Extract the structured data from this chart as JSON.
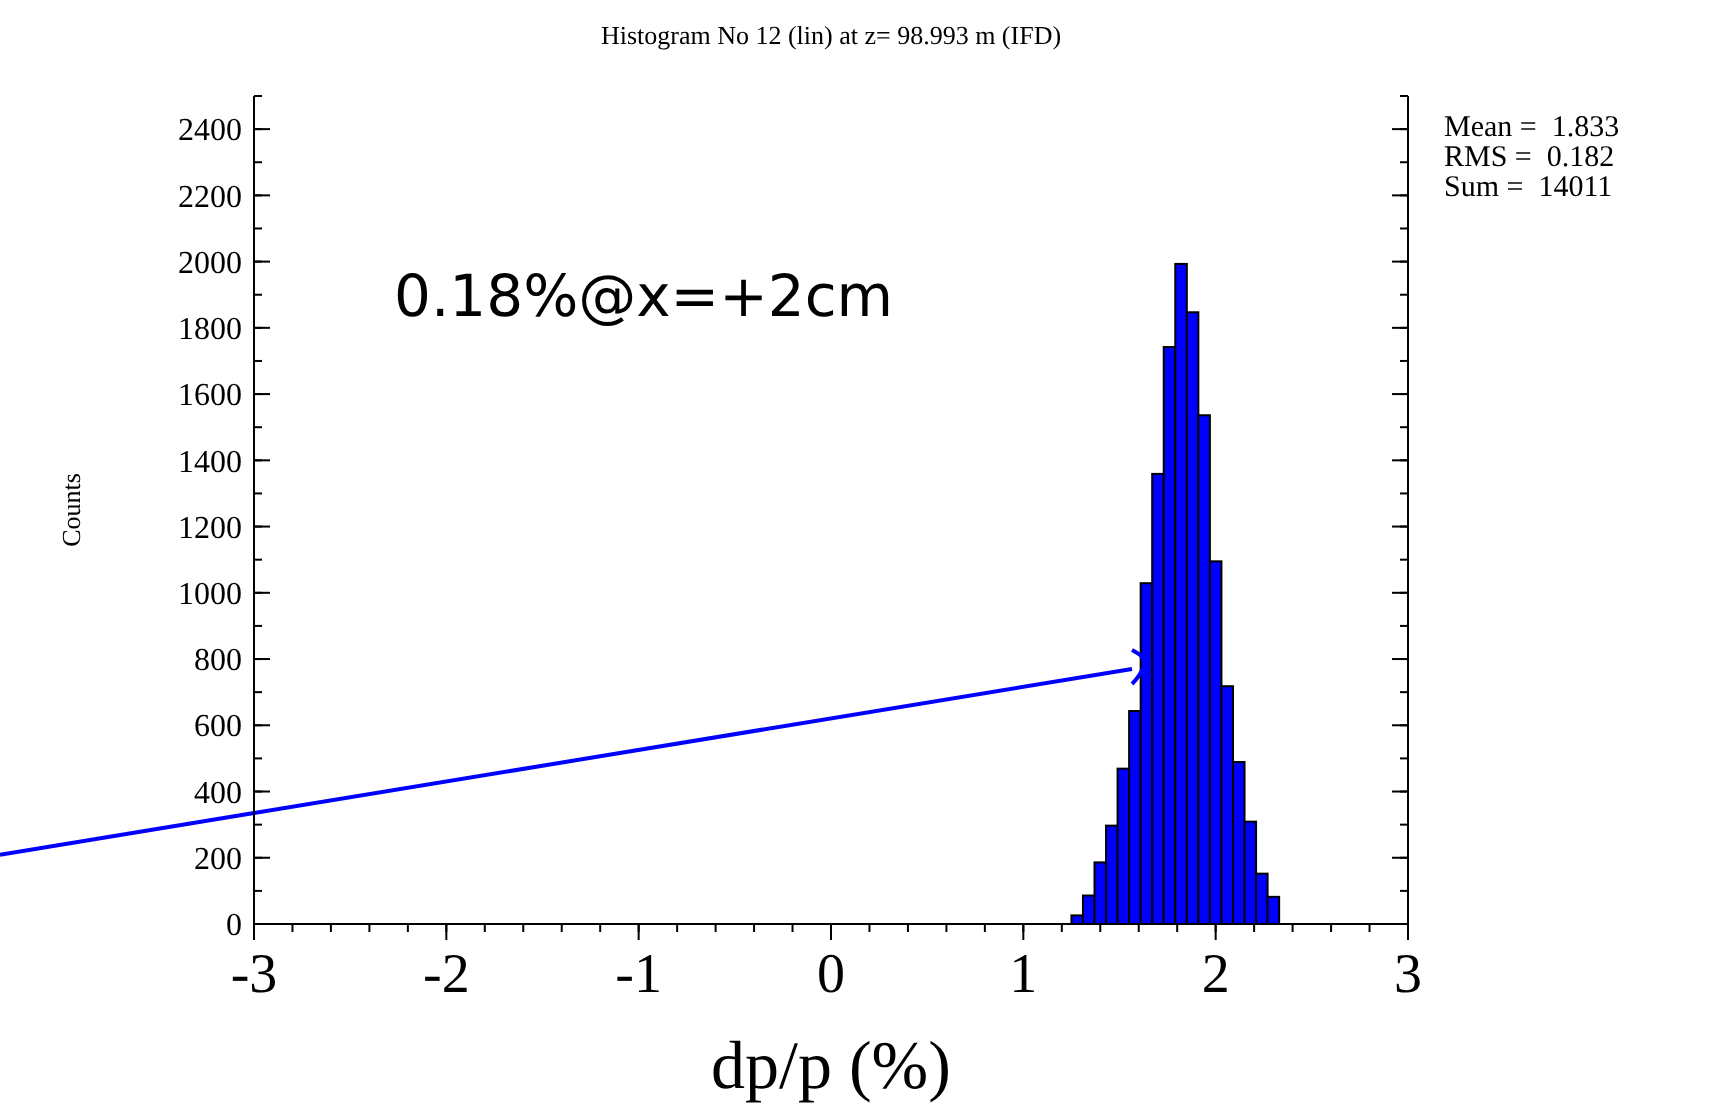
{
  "chart_data": {
    "type": "histogram",
    "title": "Histogram No 12 (lin) at z= 98.993 m (IFD)",
    "xlabel": "dp/p (%)",
    "ylabel": "Counts",
    "bins": [
      1.25,
      1.31,
      1.37,
      1.43,
      1.49,
      1.55,
      1.61,
      1.67,
      1.73,
      1.79,
      1.85,
      1.91,
      1.97,
      2.03,
      2.09,
      2.15,
      2.21,
      2.27,
      2.33
    ],
    "values": [
      26,
      86,
      186,
      297,
      469,
      643,
      1029,
      1359,
      1742,
      1993,
      1847,
      1536,
      1095,
      718,
      489,
      309,
      152,
      82
    ],
    "color": "#0000ff",
    "xlim": [
      -3,
      3
    ],
    "xticks": [
      -3,
      -2,
      -1,
      0,
      1,
      2,
      3
    ],
    "ylim": [
      0,
      2500
    ],
    "yticks": [
      0,
      200,
      400,
      600,
      800,
      1000,
      1200,
      1400,
      1600,
      1800,
      2000,
      2200,
      2400
    ],
    "grid": false,
    "series": [
      {
        "type": "line",
        "color": "#0000ff",
        "x": [
          -3,
          1.565
        ],
        "values": [
          335,
          770
        ]
      }
    ],
    "annotations": [
      "0.18%@x=+2cm",
      "Mean =  1.833",
      "RMS =  0.182",
      "Sum =  14011"
    ]
  }
}
